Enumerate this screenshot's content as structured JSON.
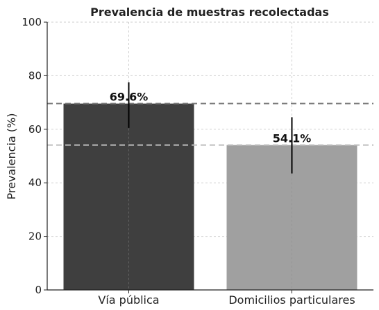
{
  "chart_data": {
    "type": "bar",
    "title": "Prevalencia de muestras recolectadas",
    "xlabel": "",
    "ylabel": "Prevalencia (%)",
    "ylim": [
      0,
      100
    ],
    "yticks": [
      0,
      20,
      40,
      60,
      80,
      100
    ],
    "categories": [
      "Vía pública",
      "Domicilios particulares"
    ],
    "values": [
      69.6,
      54.1
    ],
    "data_labels": [
      "69.6%",
      "54.1%"
    ],
    "error_bars": [
      [
        60.5,
        77.5
      ],
      [
        43.5,
        64.5
      ]
    ],
    "reference_lines": [
      69.6,
      54.1
    ],
    "bar_colors": [
      "#3f3f3f",
      "#a0a0a0"
    ],
    "reference_line_colors": [
      "#7a7a7a",
      "#bdbdbd"
    ],
    "grid": true,
    "legend": "none"
  }
}
